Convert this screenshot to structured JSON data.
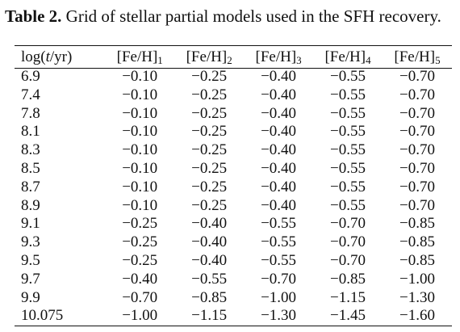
{
  "caption": {
    "label": "Table 2.",
    "text": " Grid of stellar partial models used in the SFH recovery."
  },
  "table": {
    "headers": [
      {
        "pre": "log(",
        "ital": "t",
        "post": "/yr)",
        "sub": ""
      },
      {
        "pre": "[Fe/H]",
        "ital": "",
        "post": "",
        "sub": "1"
      },
      {
        "pre": "[Fe/H]",
        "ital": "",
        "post": "",
        "sub": "2"
      },
      {
        "pre": "[Fe/H]",
        "ital": "",
        "post": "",
        "sub": "3"
      },
      {
        "pre": "[Fe/H]",
        "ital": "",
        "post": "",
        "sub": "4"
      },
      {
        "pre": "[Fe/H]",
        "ital": "",
        "post": "",
        "sub": "5"
      }
    ],
    "rows": [
      [
        "6.9",
        "−0.10",
        "−0.25",
        "−0.40",
        "−0.55",
        "−0.70"
      ],
      [
        "7.4",
        "−0.10",
        "−0.25",
        "−0.40",
        "−0.55",
        "−0.70"
      ],
      [
        "7.8",
        "−0.10",
        "−0.25",
        "−0.40",
        "−0.55",
        "−0.70"
      ],
      [
        "8.1",
        "−0.10",
        "−0.25",
        "−0.40",
        "−0.55",
        "−0.70"
      ],
      [
        "8.3",
        "−0.10",
        "−0.25",
        "−0.40",
        "−0.55",
        "−0.70"
      ],
      [
        "8.5",
        "−0.10",
        "−0.25",
        "−0.40",
        "−0.55",
        "−0.70"
      ],
      [
        "8.7",
        "−0.10",
        "−0.25",
        "−0.40",
        "−0.55",
        "−0.70"
      ],
      [
        "8.9",
        "−0.10",
        "−0.25",
        "−0.40",
        "−0.55",
        "−0.70"
      ],
      [
        "9.1",
        "−0.25",
        "−0.40",
        "−0.55",
        "−0.70",
        "−0.85"
      ],
      [
        "9.3",
        "−0.25",
        "−0.40",
        "−0.55",
        "−0.70",
        "−0.85"
      ],
      [
        "9.5",
        "−0.25",
        "−0.40",
        "−0.55",
        "−0.70",
        "−0.85"
      ],
      [
        "9.7",
        "−0.40",
        "−0.55",
        "−0.70",
        "−0.85",
        "−1.00"
      ],
      [
        "9.9",
        "−0.70",
        "−0.85",
        "−1.00",
        "−1.15",
        "−1.30"
      ],
      [
        "10.075",
        "−1.00",
        "−1.15",
        "−1.30",
        "−1.45",
        "−1.60"
      ]
    ]
  }
}
